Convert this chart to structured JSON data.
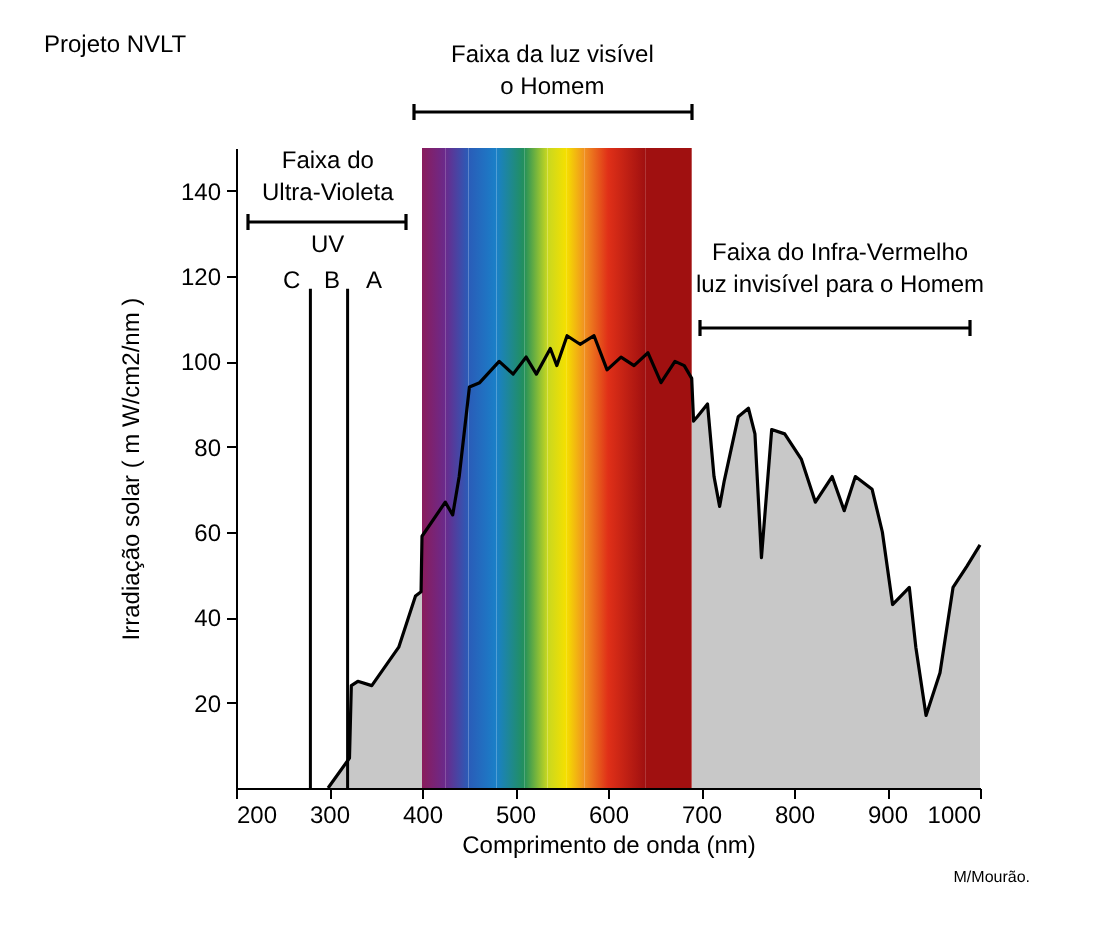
{
  "chart_data": {
    "type": "area",
    "title": "Projeto NVLT",
    "xlabel": "Comprimento de onda (nm)",
    "ylabel": "Irradiação solar ( m W/cm2/nm )",
    "xlim": [
      200,
      1000
    ],
    "xticks": [
      200,
      300,
      400,
      500,
      600,
      700,
      800,
      900,
      1000
    ],
    "ylim": [
      0,
      150
    ],
    "yticks": [
      20,
      40,
      60,
      80,
      100,
      120,
      140
    ],
    "series": [
      {
        "color": "#c8c8c8",
        "x": [
          299,
          322,
          324,
          331,
          346,
          375,
          393,
          399,
          400,
          425,
          433,
          440,
          451,
          462,
          483,
          498,
          512,
          523,
          538,
          545,
          556,
          570,
          585,
          599,
          614,
          628,
          643,
          657,
          672,
          682,
          690,
          692,
          696,
          707,
          714,
          720,
          725,
          740,
          751,
          758,
          765,
          776,
          790,
          808,
          823,
          841,
          854,
          866,
          884,
          895,
          906,
          924,
          931,
          942,
          957,
          971,
          986,
          1000
        ],
        "values": [
          0,
          7,
          24,
          25,
          24,
          33,
          45,
          46,
          59,
          67,
          64,
          73,
          94,
          95,
          100,
          97,
          101,
          97,
          103,
          99,
          106,
          104,
          106,
          98,
          101,
          99,
          102,
          95,
          100,
          99,
          96,
          86,
          87,
          90,
          73,
          66,
          72,
          87,
          89,
          83,
          54,
          84,
          83,
          77,
          67,
          73,
          65,
          73,
          70,
          60,
          43,
          47,
          33,
          17,
          27,
          47,
          52,
          57
        ]
      },
      {
        "type": "line",
        "color": "#000000",
        "x": [
          280,
          280
        ],
        "values": [
          0,
          117
        ]
      },
      {
        "type": "line",
        "color": "#000000",
        "x": [
          320,
          320
        ],
        "values": [
          0,
          117
        ]
      }
    ],
    "bands": [
      {
        "axis": "x",
        "from": 400,
        "to": 425,
        "color": "#8a1c5c"
      },
      {
        "axis": "x",
        "from": 425,
        "to": 450,
        "color": "#6a2a8c"
      },
      {
        "axis": "x",
        "from": 450,
        "to": 480,
        "color": "#2a5cb8"
      },
      {
        "axis": "x",
        "from": 480,
        "to": 510,
        "color": "#1a80c8"
      },
      {
        "axis": "x",
        "from": 510,
        "to": 535,
        "color": "#22905a"
      },
      {
        "axis": "x",
        "from": 535,
        "to": 555,
        "color": "#c8d820"
      },
      {
        "axis": "x",
        "from": 555,
        "to": 575,
        "color": "#f5e000"
      },
      {
        "axis": "x",
        "from": 575,
        "to": 600,
        "color": "#f09020"
      },
      {
        "axis": "x",
        "from": 600,
        "to": 640,
        "color": "#e03018"
      },
      {
        "axis": "x",
        "from": 640,
        "to": 690,
        "color": "#a01010"
      }
    ],
    "annotations": [
      "Faixa do\nUltra-Violeta",
      "UV",
      "C",
      "B",
      "A",
      "Faixa da luz visível\no Homem",
      "Faixa do Infra-Vermelho\nluz invisível para o Homem",
      "M/Mourão."
    ]
  }
}
